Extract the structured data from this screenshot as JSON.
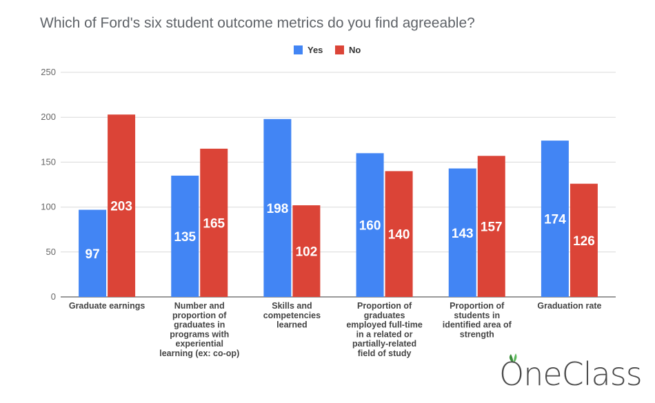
{
  "chart_data": {
    "type": "bar",
    "title": "Which of Ford's six student outcome metrics do you find agreeable?",
    "categories": [
      [
        "Graduate earnings"
      ],
      [
        "Number and",
        "proportion of",
        "graduates in",
        "programs with",
        "experiential",
        "learning (ex: co-op)"
      ],
      [
        "Skills and",
        "competencies",
        "learned"
      ],
      [
        "Proportion of",
        "graduates",
        "employed full-time",
        "in a related or",
        "partially-related",
        "field of study"
      ],
      [
        "Proportion of",
        "students in",
        "identified area of",
        "strength"
      ],
      [
        "Graduation rate"
      ]
    ],
    "series": [
      {
        "name": "Yes",
        "color": "#4285f4",
        "values": [
          97,
          135,
          198,
          160,
          143,
          174
        ]
      },
      {
        "name": "No",
        "color": "#db4437",
        "values": [
          203,
          165,
          102,
          140,
          157,
          126
        ]
      }
    ],
    "ylim": [
      0,
      250
    ],
    "yticks": [
      0,
      50,
      100,
      150,
      200,
      250
    ],
    "grid": true,
    "legend": "top-center",
    "data_labels": true
  },
  "watermark": {
    "text": "OneClass",
    "icon": "leaf-icon"
  }
}
